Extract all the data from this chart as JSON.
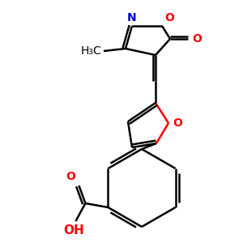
{
  "bg_color": "#ffffff",
  "bond_color": "#000000",
  "N_color": "#0000cd",
  "O_color": "#ff0000",
  "lw": 1.8,
  "figsize": [
    3.0,
    3.0
  ],
  "dpi": 100,
  "xlim": [
    0,
    300
  ],
  "ylim": [
    0,
    300
  ]
}
